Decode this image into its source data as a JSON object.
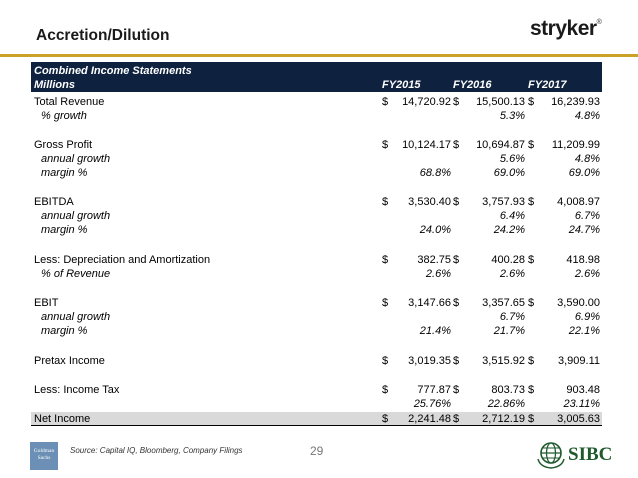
{
  "title": "Accretion/Dilution",
  "logo": "stryker",
  "logo_mark": "®",
  "table": {
    "header_line1": "Combined Income Statements",
    "header_line2": "Millions",
    "columns": [
      "FY2015",
      "FY2016",
      "FY2017"
    ]
  },
  "rows": [
    {
      "label": "Total Revenue",
      "sub": false,
      "dollar": [
        "$",
        "$",
        "$"
      ],
      "values": [
        "14,720.92",
        "15,500.13",
        "16,239.93"
      ]
    },
    {
      "label": "% growth",
      "sub": true,
      "values": [
        "",
        "5.3%",
        "4.8%"
      ]
    },
    {
      "label": "Gross Profit",
      "sub": false,
      "dollar": [
        "$",
        "$",
        "$"
      ],
      "values": [
        "10,124.17",
        "10,694.87",
        "11,209.99"
      ]
    },
    {
      "label": "annual growth",
      "sub": true,
      "values": [
        "",
        "5.6%",
        "4.8%"
      ]
    },
    {
      "label": "margin %",
      "sub": true,
      "values": [
        "68.8%",
        "69.0%",
        "69.0%"
      ]
    },
    {
      "label": "EBITDA",
      "sub": false,
      "dollar": [
        "$",
        "$",
        "$"
      ],
      "values": [
        "3,530.40",
        "3,757.93",
        "4,008.97"
      ]
    },
    {
      "label": "annual growth",
      "sub": true,
      "values": [
        "",
        "6.4%",
        "6.7%"
      ]
    },
    {
      "label": "margin %",
      "sub": true,
      "values": [
        "24.0%",
        "24.2%",
        "24.7%"
      ]
    },
    {
      "label": "Less: Depreciation and Amortization",
      "sub": false,
      "dollar": [
        "$",
        "$",
        "$"
      ],
      "values": [
        "382.75",
        "400.28",
        "418.98"
      ]
    },
    {
      "label": "% of Revenue",
      "sub": true,
      "values": [
        "2.6%",
        "2.6%",
        "2.6%"
      ]
    },
    {
      "label": "EBIT",
      "sub": false,
      "dollar": [
        "$",
        "$",
        "$"
      ],
      "values": [
        "3,147.66",
        "3,357.65",
        "3,590.00"
      ]
    },
    {
      "label": "annual growth",
      "sub": true,
      "values": [
        "",
        "6.7%",
        "6.9%"
      ]
    },
    {
      "label": "margin %",
      "sub": true,
      "values": [
        "21.4%",
        "21.7%",
        "22.1%"
      ]
    },
    {
      "label": "Pretax Income",
      "sub": false,
      "dollar": [
        "$",
        "$",
        "$"
      ],
      "values": [
        "3,019.35",
        "3,515.92",
        "3,909.11"
      ]
    },
    {
      "label": "Less: Income Tax",
      "sub": false,
      "dollar": [
        "$",
        "$",
        "$"
      ],
      "values": [
        "777.87",
        "803.73",
        "903.48"
      ]
    },
    {
      "label": "",
      "sub": true,
      "values": [
        "25.76%",
        "22.86%",
        "23.11%"
      ]
    },
    {
      "label": "Net Income",
      "sub": false,
      "net": true,
      "dollar": [
        "$",
        "$",
        "$"
      ],
      "values": [
        "2,241.48",
        "2,712.19",
        "3,005.63"
      ]
    }
  ],
  "footer": {
    "goldman_logo": "Goldman Sachs",
    "source": "Source: Capital IQ, Bloomberg, Company Filings",
    "page": "29",
    "sibc": "SIBC"
  },
  "colors": {
    "header_bg": "#0e2240",
    "rule": "#c9a227",
    "net_bg": "#d9d9d9",
    "sibc": "#1f5a2c"
  }
}
